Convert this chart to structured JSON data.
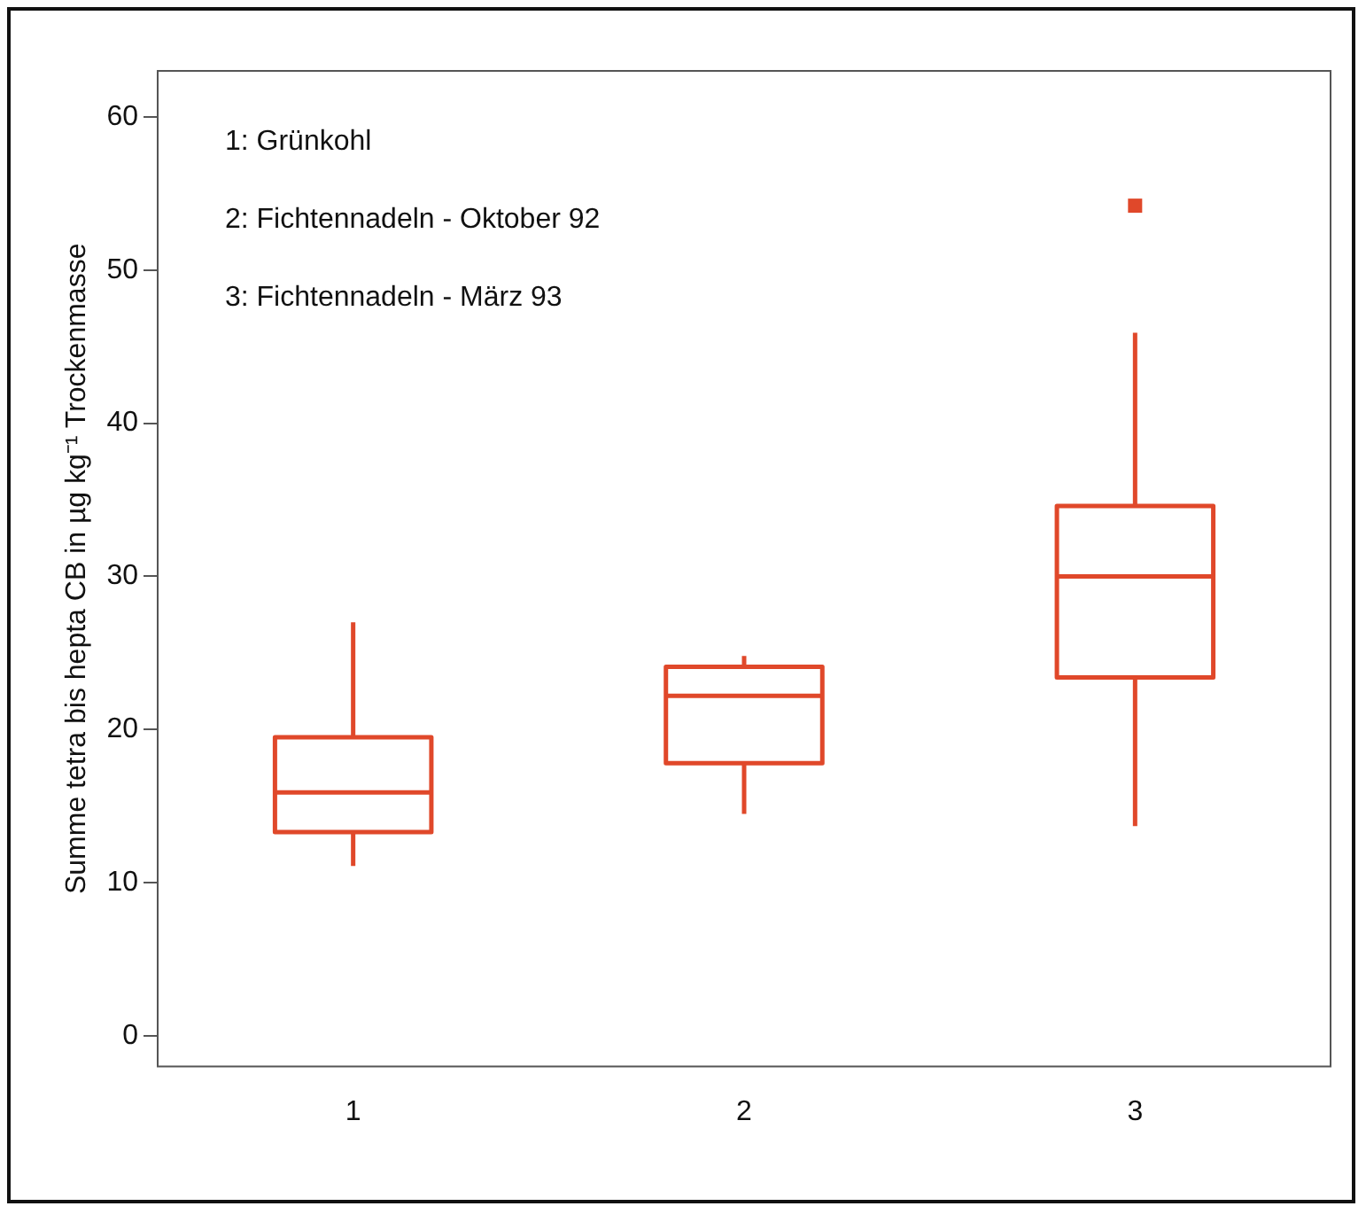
{
  "chart_data": {
    "type": "box",
    "ylabel": "Summe tetra bis hepta CB in µg kg⁻¹ Trockenmasse",
    "categories": [
      "1",
      "2",
      "3"
    ],
    "color": "#e0482a",
    "boxes": [
      {
        "low": 11.1,
        "q1": 13.3,
        "median": 15.9,
        "q3": 19.5,
        "high": 27.0
      },
      {
        "low": 14.5,
        "q1": 17.8,
        "median": 22.2,
        "q3": 24.1,
        "high": 24.8
      },
      {
        "low": 13.7,
        "q1": 23.4,
        "median": 30.0,
        "q3": 34.6,
        "high": 45.9,
        "outliers": [
          54.2
        ]
      }
    ],
    "ylim": [
      -2,
      63
    ],
    "yticks": [
      0,
      10,
      20,
      30,
      40,
      50,
      60
    ],
    "annotations": [
      "1: Grünkohl",
      "2: Fichtennadeln - Oktober 92",
      "3: Fichtennadeln - März 93"
    ],
    "grid": false,
    "legend": false,
    "marker": "square"
  }
}
